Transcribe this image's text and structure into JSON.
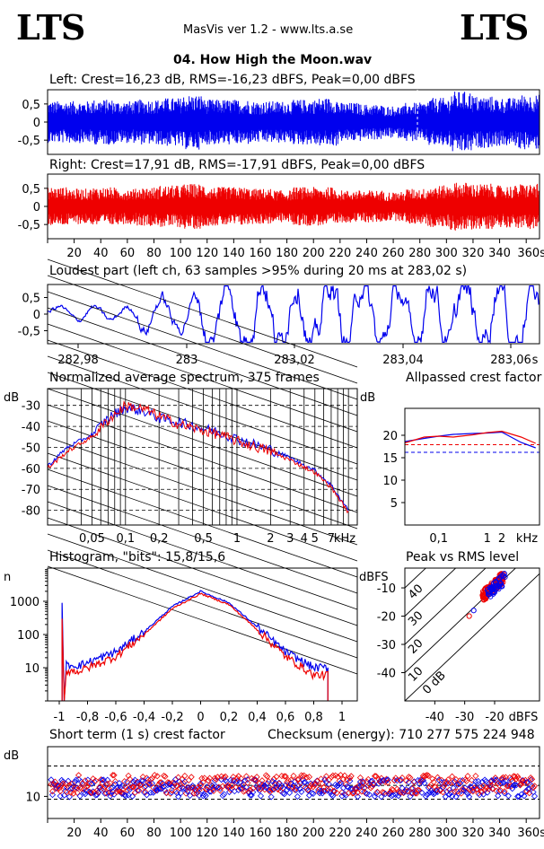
{
  "header": {
    "logo_left": "LTS",
    "logo_right": "LTS",
    "app": "MasVis ver 1.2 - www.lts.a.se",
    "song": "04. How High the Moon.wav"
  },
  "colors": {
    "left": "#0000ee",
    "right": "#ee0000",
    "grid": "#000000"
  },
  "panels": {
    "left": {
      "title": "Left: Crest=16,23 dB, RMS=-16,23 dBFS, Peak=0,00 dBFS",
      "yticks": [
        "0,5",
        "0",
        "-0,5"
      ]
    },
    "right": {
      "title": "Right: Crest=17,91 dB, RMS=-17,91 dBFS, Peak=0,00 dBFS",
      "yticks": [
        "0,5",
        "0",
        "-0,5"
      ]
    },
    "time_axis": {
      "ticks": [
        "20",
        "40",
        "60",
        "80",
        "100",
        "120",
        "140",
        "160",
        "180",
        "200",
        "220",
        "240",
        "260",
        "280",
        "300",
        "320",
        "340",
        "360s"
      ]
    },
    "loudest": {
      "title": "Loudest part (left  ch, 63 samples >95% during 20 ms at 283,02 s)",
      "yticks": [
        "0,5",
        "0",
        "-0,5"
      ],
      "xticks": [
        "282,98",
        "283",
        "283,02",
        "283,04",
        "283,06"
      ],
      "xunit": "s"
    },
    "spectrum": {
      "title": "Normalized average spectrum, 375 frames",
      "yunit": "dB",
      "yticks": [
        "-30",
        "-40",
        "-50",
        "-60",
        "-70",
        "-80"
      ],
      "xticks": [
        "0,05",
        "0,1",
        "0,2",
        "0,5",
        "1",
        "2",
        "3",
        "4",
        "5",
        "7"
      ],
      "xunit": "kHz"
    },
    "allpass": {
      "title": "Allpassed crest factor",
      "yunit": "dB",
      "yticks": [
        "20",
        "15",
        "10",
        "5"
      ],
      "xticks": [
        "0,1",
        "1",
        "2"
      ],
      "xunit": "kHz"
    },
    "histogram": {
      "title": "Histogram, \"bits\": 15,8/15,6",
      "yunit": "n",
      "yticks": [
        "1000",
        "100",
        "10"
      ],
      "xticks": [
        "-1",
        "-0,8",
        "-0,6",
        "-0,4",
        "-0,2",
        "0",
        "0,2",
        "0,4",
        "0,6",
        "0,8",
        "1"
      ]
    },
    "peakrms": {
      "title": "Peak vs RMS level",
      "yunit": "dBFS",
      "yticks": [
        "-10",
        "-20",
        "-30",
        "-40"
      ],
      "xticks": [
        "-40",
        "-30",
        "-20"
      ],
      "xunit": "dBFS",
      "diag_labels": [
        "40",
        "30",
        "20",
        "10",
        "0 dB"
      ]
    },
    "shortterm": {
      "title": "Short term (1 s) crest factor",
      "checksum": "Checksum (energy):   710 277 575 224 948",
      "yunit": "dB",
      "yticks": [
        "10"
      ],
      "xticks": [
        "20",
        "40",
        "60",
        "80",
        "100",
        "120",
        "140",
        "160",
        "180",
        "200",
        "220",
        "240",
        "260",
        "280",
        "300",
        "320",
        "340",
        "360s"
      ]
    }
  },
  "chart_data": [
    {
      "type": "line",
      "title": "Left: Crest=16,23 dB, RMS=-16,23 dBFS, Peak=0,00 dBFS",
      "series": [
        {
          "name": "Left",
          "envelope": [
            0.65,
            0.65,
            0.7,
            0.65,
            0.7,
            0.75,
            0.85,
            0.7,
            0.7,
            0.65,
            0.65,
            0.7,
            0.75,
            0.6,
            0.55,
            0.5,
            0.6,
            0.75,
            0.95,
            0.8,
            0.75,
            0.85
          ]
        }
      ],
      "xlim": [
        0,
        370
      ],
      "ylim": [
        -1,
        1
      ]
    },
    {
      "type": "line",
      "title": "Right: Crest=17,91 dB, RMS=-17,91 dBFS, Peak=0,00 dBFS",
      "series": [
        {
          "name": "Right",
          "envelope": [
            0.6,
            0.55,
            0.6,
            0.55,
            0.6,
            0.65,
            0.7,
            0.6,
            0.6,
            0.55,
            0.5,
            0.6,
            0.6,
            0.5,
            0.5,
            0.45,
            0.55,
            0.65,
            0.75,
            0.7,
            0.65,
            0.7
          ]
        }
      ],
      "xlim": [
        0,
        370
      ],
      "ylim": [
        -1,
        1
      ]
    },
    {
      "type": "line",
      "title": "Loudest part (left  ch, 63 samples >95% during 20 ms at 283,02 s)",
      "xlim": [
        282.965,
        283.075
      ],
      "ylim": [
        -1,
        1
      ]
    },
    {
      "type": "line",
      "title": "Normalized average spectrum, 375 frames",
      "x": [
        0.02,
        0.03,
        0.05,
        0.07,
        0.1,
        0.15,
        0.2,
        0.3,
        0.5,
        0.7,
        1,
        2,
        3,
        5,
        7,
        10
      ],
      "series": [
        {
          "name": "Left",
          "values": [
            -59,
            -50,
            -44,
            -36,
            -31,
            -33,
            -36,
            -38,
            -41,
            -43,
            -46,
            -51,
            -55,
            -61,
            -68,
            -80
          ]
        },
        {
          "name": "Right",
          "values": [
            -60,
            -52,
            -45,
            -37,
            -30,
            -32,
            -35,
            -39,
            -42,
            -44,
            -47,
            -52,
            -56,
            -62,
            -69,
            -81
          ]
        }
      ],
      "ylim": [
        -87,
        -22
      ]
    },
    {
      "type": "line",
      "title": "Allpassed crest factor",
      "x": [
        0.02,
        0.05,
        0.1,
        0.2,
        0.5,
        1,
        2,
        5,
        10
      ],
      "series": [
        {
          "name": "Left",
          "values": [
            18.6,
            19.3,
            19.8,
            20.2,
            20.4,
            20.5,
            20.7,
            18.4,
            17.2
          ]
        },
        {
          "name": "Right",
          "values": [
            18.3,
            19.6,
            19.8,
            19.6,
            20.1,
            20.6,
            20.9,
            19.6,
            18.2
          ]
        }
      ],
      "reference": {
        "Left": 16.2,
        "Right": 17.9
      },
      "ylim": [
        0,
        26
      ]
    },
    {
      "type": "line",
      "title": "Histogram, \"bits\": 15,8/15,6",
      "x": [
        -0.85,
        -0.6,
        -0.4,
        -0.2,
        0,
        0.2,
        0.4,
        0.6,
        0.8
      ],
      "series": [
        {
          "name": "Left",
          "values": [
            12,
            30,
            120,
            700,
            2000,
            900,
            170,
            30,
            10
          ]
        },
        {
          "name": "Right",
          "values": [
            8,
            22,
            100,
            600,
            1700,
            800,
            140,
            22,
            6
          ]
        }
      ],
      "ylim": [
        1,
        10000
      ]
    },
    {
      "type": "scatter",
      "title": "Peak vs RMS level",
      "series": [
        {
          "name": "Left",
          "points": [
            [
              -21,
              -14
            ],
            [
              -19,
              -12
            ],
            [
              -17,
              -10
            ],
            [
              -18,
              -8
            ],
            [
              -26,
              -18
            ],
            [
              -28,
              -19
            ]
          ]
        },
        {
          "name": "Right",
          "points": [
            [
              -22,
              -14
            ],
            [
              -20,
              -11
            ],
            [
              -18,
              -9
            ],
            [
              -16,
              -7
            ],
            [
              -21,
              -6
            ],
            [
              -24,
              -12
            ]
          ]
        }
      ],
      "xlim": [
        -50,
        -10
      ],
      "ylim": [
        -50,
        -3
      ]
    },
    {
      "type": "scatter",
      "title": "Short term (1 s) crest factor",
      "series": [
        {
          "name": "Left",
          "mean": 11.5
        },
        {
          "name": "Right",
          "mean": 12.2
        }
      ],
      "references": [
        15.5,
        12.0,
        9.5
      ],
      "xlim": [
        0,
        370
      ],
      "ylim": [
        6,
        19
      ]
    }
  ]
}
